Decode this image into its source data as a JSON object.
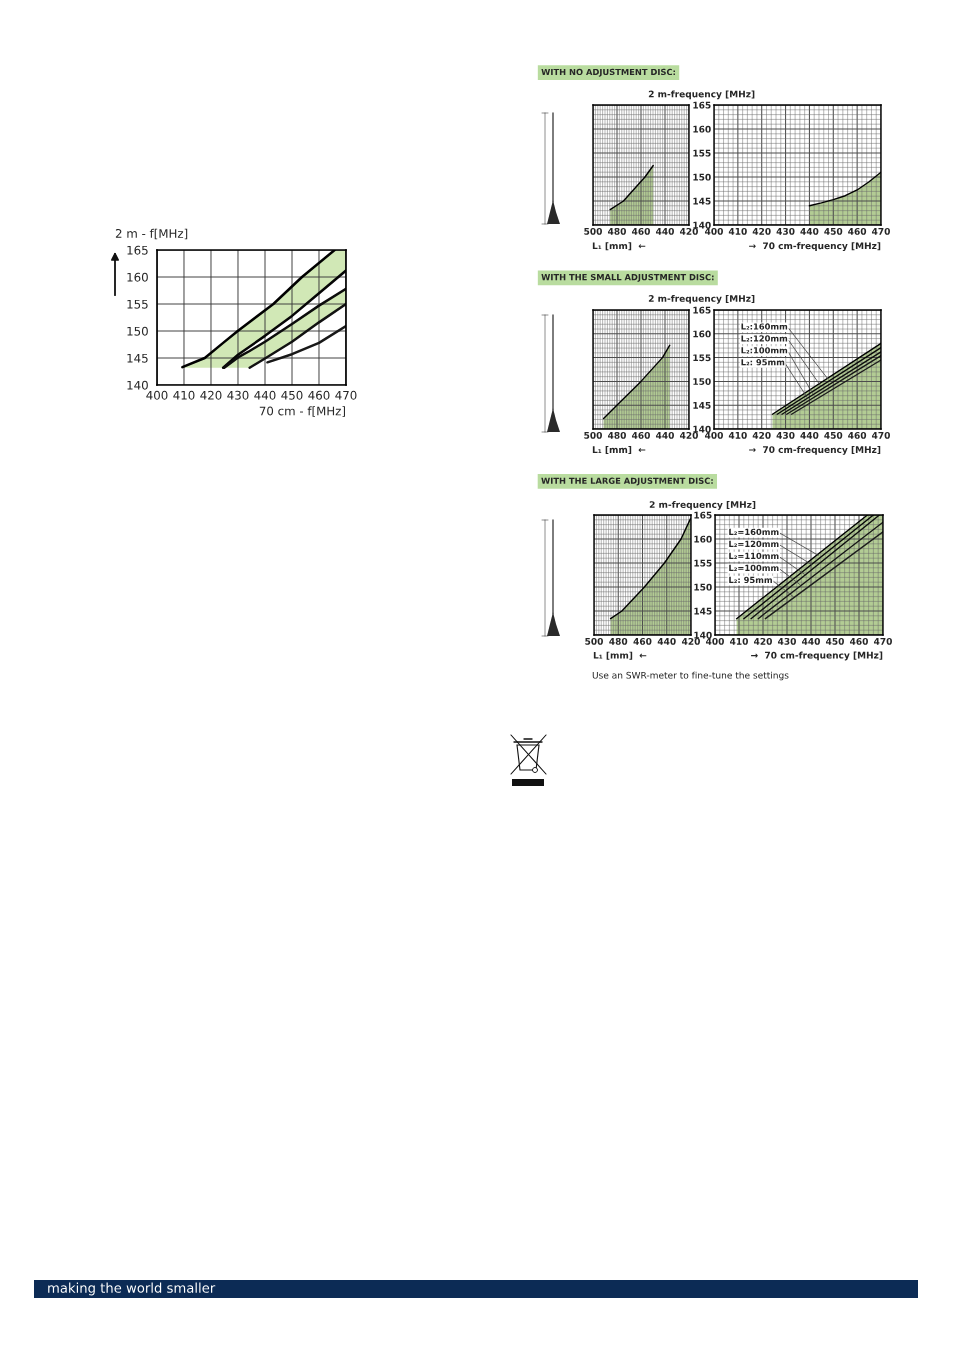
{
  "chart_data": [
    {
      "type": "line",
      "xlabel": "70 cm - f[MHz]",
      "ylabel": "2 m - f[MHz]",
      "xlim": [
        400,
        470
      ],
      "ylim": [
        140,
        165
      ],
      "xticks": [
        400,
        410,
        420,
        430,
        440,
        450,
        460,
        470
      ],
      "yticks": [
        140,
        145,
        150,
        155,
        160,
        165
      ],
      "grid": true,
      "series": [
        {
          "color": "#000000",
          "x": [
            409.4,
            417.7,
            424.5,
            429.9,
            443.1,
            453.7,
            465.8,
            470
          ],
          "values": [
            143.3,
            145,
            147.8,
            150,
            155,
            160,
            165,
            null
          ],
          "lower": [
            143.2,
            143.2,
            143.2,
            145.6,
            150.2,
            154.4,
            159.4,
            161.2
          ],
          "upper": [
            143.3,
            145,
            147.8,
            150,
            155,
            160,
            165,
            165
          ]
        },
        {
          "color": "#060606",
          "x": [
            424.5,
            430,
            440,
            450,
            460,
            470
          ],
          "values": [
            143.2,
            145.6,
            149.1,
            152.8,
            157.0,
            161.2
          ]
        },
        {
          "color": "#0c0c0c",
          "x": [
            424.9,
            430,
            434.3,
            440,
            450,
            460,
            470
          ],
          "values": [
            143.2,
            145.1,
            146.3,
            148.0,
            151.3,
            154.7,
            157.8
          ],
          "lower": [
            143.2,
            143.2,
            143.2,
            144.9,
            148.0,
            151.6,
            155.0
          ],
          "upper": [
            143.2,
            145.1,
            146.3,
            148.0,
            151.3,
            154.7,
            157.8
          ]
        },
        {
          "color": "#121212",
          "x": [
            434.3,
            440,
            450,
            460,
            470
          ],
          "values": [
            143.2,
            144.9,
            148.0,
            151.6,
            155.0
          ]
        },
        {
          "color": "#181818",
          "x": [
            440.9,
            450,
            460,
            470
          ],
          "values": [
            144.2,
            145.7,
            147.8,
            150.9
          ]
        }
      ]
    },
    {
      "type": "line",
      "title": "WITH NO ADJUSTMENT DISC:",
      "xlabel": "L₁ [mm]  ←",
      "xlim": [
        500,
        420
      ],
      "ylim": [
        140,
        165
      ],
      "tick_labels": "x",
      "grid": true,
      "xticks": [
        500,
        {
          "value": 498,
          "label": null
        },
        {
          "value": 496,
          "label": null
        },
        {
          "value": 494,
          "label": null
        },
        {
          "value": 492,
          "label": null
        },
        {
          "value": 490,
          "label": null
        },
        {
          "value": 488,
          "label": null
        },
        {
          "value": 486,
          "label": null
        },
        {
          "value": 484,
          "label": null
        },
        {
          "value": 482,
          "label": null
        },
        480,
        {
          "value": 478,
          "label": null
        },
        {
          "value": 476,
          "label": null
        },
        {
          "value": 474,
          "label": null
        },
        {
          "value": 472,
          "label": null
        },
        {
          "value": 470,
          "label": null
        },
        {
          "value": 468,
          "label": null
        },
        {
          "value": 466,
          "label": null
        },
        {
          "value": 464,
          "label": null
        },
        {
          "value": 462,
          "label": null
        },
        460,
        {
          "value": 458,
          "label": null
        },
        {
          "value": 456,
          "label": null
        },
        {
          "value": 454,
          "label": null
        },
        {
          "value": 452,
          "label": null
        },
        {
          "value": 450,
          "label": null
        },
        {
          "value": 448,
          "label": null
        },
        {
          "value": 446,
          "label": null
        },
        {
          "value": 444,
          "label": null
        },
        {
          "value": 442,
          "label": null
        },
        440,
        {
          "value": 438,
          "label": null
        },
        {
          "value": 436,
          "label": null
        },
        {
          "value": 434,
          "label": null
        },
        {
          "value": 432,
          "label": null
        },
        {
          "value": 430,
          "label": null
        },
        {
          "value": 428,
          "label": null
        },
        {
          "value": 426,
          "label": null
        },
        {
          "value": 424,
          "label": null
        },
        {
          "value": 422,
          "label": null
        },
        420
      ],
      "yticks": [
        140,
        {
          "value": 141,
          "label": null
        },
        {
          "value": 142,
          "label": null
        },
        {
          "value": 143,
          "label": null
        },
        {
          "value": 144,
          "label": null
        },
        145,
        {
          "value": 146,
          "label": null
        },
        {
          "value": 147,
          "label": null
        },
        {
          "value": 148,
          "label": null
        },
        {
          "value": 149,
          "label": null
        },
        150,
        {
          "value": 151,
          "label": null
        },
        {
          "value": 152,
          "label": null
        },
        {
          "value": 153,
          "label": null
        },
        {
          "value": 154,
          "label": null
        },
        155,
        {
          "value": 156,
          "label": null
        },
        {
          "value": 157,
          "label": null
        },
        {
          "value": 158,
          "label": null
        },
        {
          "value": 159,
          "label": null
        },
        160,
        {
          "value": 161,
          "label": null
        },
        {
          "value": 162,
          "label": null
        },
        {
          "value": 163,
          "label": null
        },
        {
          "value": 164,
          "label": null
        },
        165
      ],
      "series": [
        {
          "color": "#000000",
          "x": [
            485.7,
            474.6,
            456.7,
            449.8
          ],
          "values": [
            143.2,
            145,
            150,
            152.4
          ],
          "lower": [
            140,
            140,
            140,
            140
          ],
          "upper": [
            143.2,
            145,
            150,
            152.4
          ]
        }
      ]
    },
    {
      "type": "line",
      "xlabel": "→  70 cm-frequency [MHz]",
      "ylabel": "2 m-frequency [MHz]",
      "xlim": [
        400,
        470
      ],
      "ylim": [
        140,
        165
      ],
      "grid": true,
      "xticks": [
        400,
        {
          "value": 402,
          "label": null
        },
        {
          "value": 404,
          "label": null
        },
        {
          "value": 406,
          "label": null
        },
        {
          "value": 408,
          "label": null
        },
        410,
        {
          "value": 412,
          "label": null
        },
        {
          "value": 414,
          "label": null
        },
        {
          "value": 416,
          "label": null
        },
        {
          "value": 418,
          "label": null
        },
        420,
        {
          "value": 422,
          "label": null
        },
        {
          "value": 424,
          "label": null
        },
        {
          "value": 426,
          "label": null
        },
        {
          "value": 428,
          "label": null
        },
        430,
        {
          "value": 432,
          "label": null
        },
        {
          "value": 434,
          "label": null
        },
        {
          "value": 436,
          "label": null
        },
        {
          "value": 438,
          "label": null
        },
        440,
        {
          "value": 442,
          "label": null
        },
        {
          "value": 444,
          "label": null
        },
        {
          "value": 446,
          "label": null
        },
        {
          "value": 448,
          "label": null
        },
        450,
        {
          "value": 452,
          "label": null
        },
        {
          "value": 454,
          "label": null
        },
        {
          "value": 456,
          "label": null
        },
        {
          "value": 458,
          "label": null
        },
        460,
        {
          "value": 462,
          "label": null
        },
        {
          "value": 464,
          "label": null
        },
        {
          "value": 466,
          "label": null
        },
        {
          "value": 468,
          "label": null
        },
        470
      ],
      "yticks": [
        140,
        {
          "value": 141,
          "label": null
        },
        {
          "value": 142,
          "label": null
        },
        {
          "value": 143,
          "label": null
        },
        {
          "value": 144,
          "label": null
        },
        145,
        {
          "value": 146,
          "label": null
        },
        {
          "value": 147,
          "label": null
        },
        {
          "value": 148,
          "label": null
        },
        {
          "value": 149,
          "label": null
        },
        150,
        {
          "value": 151,
          "label": null
        },
        {
          "value": 152,
          "label": null
        },
        {
          "value": 153,
          "label": null
        },
        {
          "value": 154,
          "label": null
        },
        155,
        {
          "value": 156,
          "label": null
        },
        {
          "value": 157,
          "label": null
        },
        {
          "value": 158,
          "label": null
        },
        {
          "value": 159,
          "label": null
        },
        160,
        {
          "value": 161,
          "label": null
        },
        {
          "value": 162,
          "label": null
        },
        {
          "value": 163,
          "label": null
        },
        {
          "value": 164,
          "label": null
        },
        165
      ],
      "series": [
        {
          "color": "#000000",
          "x": [
            440,
            445,
            450,
            455,
            460,
            465,
            470
          ],
          "values": [
            144.0,
            144.6,
            145.3,
            146.1,
            147.3,
            149.0,
            151.0
          ],
          "lower": [
            140,
            140,
            140,
            140,
            140,
            140,
            140
          ],
          "upper": [
            144.0,
            144.6,
            145.3,
            146.1,
            147.3,
            149.0,
            151.0
          ]
        }
      ]
    },
    {
      "type": "line",
      "title": "WITH THE SMALL ADJUSTMENT DISC:",
      "xlabel": "L₁ [mm]  ←",
      "xlim": [
        500,
        420
      ],
      "ylim": [
        140,
        165
      ],
      "tick_labels": "x",
      "grid": true,
      "xticks": [
        500,
        {
          "value": 498,
          "label": null
        },
        {
          "value": 496,
          "label": null
        },
        {
          "value": 494,
          "label": null
        },
        {
          "value": 492,
          "label": null
        },
        {
          "value": 490,
          "label": null
        },
        {
          "value": 488,
          "label": null
        },
        {
          "value": 486,
          "label": null
        },
        {
          "value": 484,
          "label": null
        },
        {
          "value": 482,
          "label": null
        },
        480,
        {
          "value": 478,
          "label": null
        },
        {
          "value": 476,
          "label": null
        },
        {
          "value": 474,
          "label": null
        },
        {
          "value": 472,
          "label": null
        },
        {
          "value": 470,
          "label": null
        },
        {
          "value": 468,
          "label": null
        },
        {
          "value": 466,
          "label": null
        },
        {
          "value": 464,
          "label": null
        },
        {
          "value": 462,
          "label": null
        },
        460,
        {
          "value": 458,
          "label": null
        },
        {
          "value": 456,
          "label": null
        },
        {
          "value": 454,
          "label": null
        },
        {
          "value": 452,
          "label": null
        },
        {
          "value": 450,
          "label": null
        },
        {
          "value": 448,
          "label": null
        },
        {
          "value": 446,
          "label": null
        },
        {
          "value": 444,
          "label": null
        },
        {
          "value": 442,
          "label": null
        },
        440,
        {
          "value": 438,
          "label": null
        },
        {
          "value": 436,
          "label": null
        },
        {
          "value": 434,
          "label": null
        },
        {
          "value": 432,
          "label": null
        },
        {
          "value": 430,
          "label": null
        },
        {
          "value": 428,
          "label": null
        },
        {
          "value": 426,
          "label": null
        },
        {
          "value": 424,
          "label": null
        },
        {
          "value": 422,
          "label": null
        },
        420
      ],
      "yticks": [
        140,
        {
          "value": 141,
          "label": null
        },
        {
          "value": 142,
          "label": null
        },
        {
          "value": 143,
          "label": null
        },
        {
          "value": 144,
          "label": null
        },
        145,
        {
          "value": 146,
          "label": null
        },
        {
          "value": 147,
          "label": null
        },
        {
          "value": 148,
          "label": null
        },
        {
          "value": 149,
          "label": null
        },
        150,
        {
          "value": 151,
          "label": null
        },
        {
          "value": 152,
          "label": null
        },
        {
          "value": 153,
          "label": null
        },
        {
          "value": 154,
          "label": null
        },
        155,
        {
          "value": 156,
          "label": null
        },
        {
          "value": 157,
          "label": null
        },
        {
          "value": 158,
          "label": null
        },
        {
          "value": 159,
          "label": null
        },
        160,
        {
          "value": 161,
          "label": null
        },
        {
          "value": 162,
          "label": null
        },
        {
          "value": 163,
          "label": null
        },
        {
          "value": 164,
          "label": null
        },
        165
      ],
      "series": [
        {
          "color": "#000000",
          "x": [
            491.2,
            480.1,
            460,
            442.1,
            436
          ],
          "values": [
            142.2,
            145,
            150,
            155,
            157.6
          ],
          "lower": [
            140,
            140,
            140,
            140,
            140
          ],
          "upper": [
            142.2,
            145,
            150,
            155,
            157.6
          ]
        }
      ]
    },
    {
      "type": "line",
      "xlabel": "→  70 cm-frequency [MHz]",
      "ylabel": "2 m-frequency [MHz]",
      "xlim": [
        400,
        470
      ],
      "ylim": [
        140,
        165
      ],
      "grid": true,
      "xticks": [
        400,
        {
          "value": 402,
          "label": null
        },
        {
          "value": 404,
          "label": null
        },
        {
          "value": 406,
          "label": null
        },
        {
          "value": 408,
          "label": null
        },
        410,
        {
          "value": 412,
          "label": null
        },
        {
          "value": 414,
          "label": null
        },
        {
          "value": 416,
          "label": null
        },
        {
          "value": 418,
          "label": null
        },
        420,
        {
          "value": 422,
          "label": null
        },
        {
          "value": 424,
          "label": null
        },
        {
          "value": 426,
          "label": null
        },
        {
          "value": 428,
          "label": null
        },
        430,
        {
          "value": 432,
          "label": null
        },
        {
          "value": 434,
          "label": null
        },
        {
          "value": 436,
          "label": null
        },
        {
          "value": 438,
          "label": null
        },
        440,
        {
          "value": 442,
          "label": null
        },
        {
          "value": 444,
          "label": null
        },
        {
          "value": 446,
          "label": null
        },
        {
          "value": 448,
          "label": null
        },
        450,
        {
          "value": 452,
          "label": null
        },
        {
          "value": 454,
          "label": null
        },
        {
          "value": 456,
          "label": null
        },
        {
          "value": 458,
          "label": null
        },
        460,
        {
          "value": 462,
          "label": null
        },
        {
          "value": 464,
          "label": null
        },
        {
          "value": 466,
          "label": null
        },
        {
          "value": 468,
          "label": null
        },
        470
      ],
      "yticks": [
        140,
        {
          "value": 141,
          "label": null
        },
        {
          "value": 142,
          "label": null
        },
        {
          "value": 143,
          "label": null
        },
        {
          "value": 144,
          "label": null
        },
        145,
        {
          "value": 146,
          "label": null
        },
        {
          "value": 147,
          "label": null
        },
        {
          "value": 148,
          "label": null
        },
        {
          "value": 149,
          "label": null
        },
        150,
        {
          "value": 151,
          "label": null
        },
        {
          "value": 152,
          "label": null
        },
        {
          "value": 153,
          "label": null
        },
        {
          "value": 154,
          "label": null
        },
        155,
        {
          "value": 156,
          "label": null
        },
        {
          "value": 157,
          "label": null
        },
        {
          "value": 158,
          "label": null
        },
        {
          "value": 159,
          "label": null
        },
        160,
        {
          "value": 161,
          "label": null
        },
        {
          "value": 162,
          "label": null
        },
        {
          "value": 163,
          "label": null
        },
        {
          "value": 164,
          "label": null
        },
        165
      ],
      "series": [
        {
          "color": "#000000",
          "x": [
            424.5,
            470
          ],
          "values": [
            143.1,
            158.0
          ],
          "lower": [
            140,
            140
          ],
          "upper": [
            143.1,
            158.0
          ]
        },
        {
          "color": "#070707",
          "x": [
            426.5,
            470
          ],
          "values": [
            143.1,
            157.1
          ]
        },
        {
          "color": "#0e0e0e",
          "x": [
            428.5,
            470
          ],
          "values": [
            143.1,
            156.2
          ]
        },
        {
          "color": "#151515",
          "x": [
            430.5,
            470
          ],
          "values": [
            143.1,
            155.4
          ]
        },
        {
          "color": "#1c1c1c",
          "x": [
            432.5,
            470
          ],
          "values": [
            143.1,
            154.5
          ]
        }
      ],
      "annotations": [
        {
          "text": "L₂:160mm",
          "x": 447.6,
          "y": 150.6
        },
        {
          "text": "L₂:120mm",
          "x": 444.8,
          "y": 149.0
        },
        {
          "text": "L₂:100mm",
          "x": 441.3,
          "y": 147.5
        },
        {
          "text": "L₂: 95mm",
          "x": 439.2,
          "y": 146.5
        }
      ]
    },
    {
      "type": "line",
      "title": "WITH THE LARGE ADJUSTMENT DISC:",
      "xlabel": "L₁ [mm]  ←",
      "xlim": [
        500,
        420
      ],
      "ylim": [
        140,
        165
      ],
      "tick_labels": "x",
      "grid": true,
      "xticks": [
        500,
        {
          "value": 498,
          "label": null
        },
        {
          "value": 496,
          "label": null
        },
        {
          "value": 494,
          "label": null
        },
        {
          "value": 492,
          "label": null
        },
        {
          "value": 490,
          "label": null
        },
        {
          "value": 488,
          "label": null
        },
        {
          "value": 486,
          "label": null
        },
        {
          "value": 484,
          "label": null
        },
        {
          "value": 482,
          "label": null
        },
        480,
        {
          "value": 478,
          "label": null
        },
        {
          "value": 476,
          "label": null
        },
        {
          "value": 474,
          "label": null
        },
        {
          "value": 472,
          "label": null
        },
        {
          "value": 470,
          "label": null
        },
        {
          "value": 468,
          "label": null
        },
        {
          "value": 466,
          "label": null
        },
        {
          "value": 464,
          "label": null
        },
        {
          "value": 462,
          "label": null
        },
        460,
        {
          "value": 458,
          "label": null
        },
        {
          "value": 456,
          "label": null
        },
        {
          "value": 454,
          "label": null
        },
        {
          "value": 452,
          "label": null
        },
        {
          "value": 450,
          "label": null
        },
        {
          "value": 448,
          "label": null
        },
        {
          "value": 446,
          "label": null
        },
        {
          "value": 444,
          "label": null
        },
        {
          "value": 442,
          "label": null
        },
        440,
        {
          "value": 438,
          "label": null
        },
        {
          "value": 436,
          "label": null
        },
        {
          "value": 434,
          "label": null
        },
        {
          "value": 432,
          "label": null
        },
        {
          "value": 430,
          "label": null
        },
        {
          "value": 428,
          "label": null
        },
        {
          "value": 426,
          "label": null
        },
        {
          "value": 424,
          "label": null
        },
        {
          "value": 422,
          "label": null
        },
        420
      ],
      "yticks": [
        140,
        {
          "value": 141,
          "label": null
        },
        {
          "value": 142,
          "label": null
        },
        {
          "value": 143,
          "label": null
        },
        {
          "value": 144,
          "label": null
        },
        145,
        {
          "value": 146,
          "label": null
        },
        {
          "value": 147,
          "label": null
        },
        {
          "value": 148,
          "label": null
        },
        {
          "value": 149,
          "label": null
        },
        150,
        {
          "value": 151,
          "label": null
        },
        {
          "value": 152,
          "label": null
        },
        {
          "value": 153,
          "label": null
        },
        {
          "value": 154,
          "label": null
        },
        155,
        {
          "value": 156,
          "label": null
        },
        {
          "value": 157,
          "label": null
        },
        {
          "value": 158,
          "label": null
        },
        {
          "value": 159,
          "label": null
        },
        160,
        {
          "value": 161,
          "label": null
        },
        {
          "value": 162,
          "label": null
        },
        {
          "value": 163,
          "label": null
        },
        {
          "value": 164,
          "label": null
        },
        165
      ],
      "series": [
        {
          "color": "#000000",
          "x": [
            486.3,
            477,
            458.4,
            441.9,
            428.2,
            420.5
          ],
          "values": [
            143.4,
            145,
            150,
            155,
            160,
            164.2
          ],
          "lower": [
            140,
            140,
            140,
            140,
            140,
            140
          ],
          "upper": [
            143.4,
            145,
            150,
            155,
            160,
            164.2
          ]
        }
      ]
    },
    {
      "type": "line",
      "xlabel": "→  70 cm-frequency [MHz]",
      "ylabel": "2 m-frequency [MHz]",
      "xlim": [
        400,
        470
      ],
      "ylim": [
        140,
        165
      ],
      "grid": true,
      "xticks": [
        400,
        {
          "value": 402,
          "label": null
        },
        {
          "value": 404,
          "label": null
        },
        {
          "value": 406,
          "label": null
        },
        {
          "value": 408,
          "label": null
        },
        410,
        {
          "value": 412,
          "label": null
        },
        {
          "value": 414,
          "label": null
        },
        {
          "value": 416,
          "label": null
        },
        {
          "value": 418,
          "label": null
        },
        420,
        {
          "value": 422,
          "label": null
        },
        {
          "value": 424,
          "label": null
        },
        {
          "value": 426,
          "label": null
        },
        {
          "value": 428,
          "label": null
        },
        430,
        {
          "value": 432,
          "label": null
        },
        {
          "value": 434,
          "label": null
        },
        {
          "value": 436,
          "label": null
        },
        {
          "value": 438,
          "label": null
        },
        440,
        {
          "value": 442,
          "label": null
        },
        {
          "value": 444,
          "label": null
        },
        {
          "value": 446,
          "label": null
        },
        {
          "value": 448,
          "label": null
        },
        450,
        {
          "value": 452,
          "label": null
        },
        {
          "value": 454,
          "label": null
        },
        {
          "value": 456,
          "label": null
        },
        {
          "value": 458,
          "label": null
        },
        460,
        {
          "value": 462,
          "label": null
        },
        {
          "value": 464,
          "label": null
        },
        {
          "value": 466,
          "label": null
        },
        {
          "value": 468,
          "label": null
        },
        470
      ],
      "yticks": [
        140,
        {
          "value": 141,
          "label": null
        },
        {
          "value": 142,
          "label": null
        },
        {
          "value": 143,
          "label": null
        },
        {
          "value": 144,
          "label": null
        },
        145,
        {
          "value": 146,
          "label": null
        },
        {
          "value": 147,
          "label": null
        },
        {
          "value": 148,
          "label": null
        },
        {
          "value": 149,
          "label": null
        },
        150,
        {
          "value": 151,
          "label": null
        },
        {
          "value": 152,
          "label": null
        },
        {
          "value": 153,
          "label": null
        },
        {
          "value": 154,
          "label": null
        },
        155,
        {
          "value": 156,
          "label": null
        },
        {
          "value": 157,
          "label": null
        },
        {
          "value": 158,
          "label": null
        },
        {
          "value": 159,
          "label": null
        },
        160,
        {
          "value": 161,
          "label": null
        },
        {
          "value": 162,
          "label": null
        },
        {
          "value": 163,
          "label": null
        },
        {
          "value": 164,
          "label": null
        },
        165
      ],
      "series": [
        {
          "color": "#000000",
          "x": [
            409,
            463.5,
            470
          ],
          "values": [
            143.4,
            165,
            null
          ],
          "lower": [
            140,
            140,
            140
          ],
          "upper": [
            143.4,
            165,
            165
          ]
        },
        {
          "color": "#070707",
          "x": [
            412,
            466
          ],
          "values": [
            143.4,
            165
          ]
        },
        {
          "color": "#0e0e0e",
          "x": [
            415,
            468.5
          ],
          "values": [
            143.4,
            165
          ]
        },
        {
          "color": "#151515",
          "x": [
            418,
            470
          ],
          "values": [
            143.4,
            163.5
          ]
        },
        {
          "color": "#1c1c1c",
          "x": [
            421,
            470
          ],
          "values": [
            143.4,
            161.5
          ]
        }
      ],
      "annotations": [
        {
          "text": "L₂=160mm",
          "x": 443,
          "y": 156.6
        },
        {
          "text": "L₂=120mm",
          "x": 440.2,
          "y": 154.7
        },
        {
          "text": "L₂=110mm",
          "x": 437.4,
          "y": 152.6
        },
        {
          "text": "L₂=100mm",
          "x": 435.4,
          "y": 150.5
        },
        {
          "text": "L₂: 95mm",
          "x": 432.6,
          "y": 148.0
        },
        "Use an SWR-meter to fine-tune the settings",
        "making the world smaller"
      ]
    }
  ]
}
